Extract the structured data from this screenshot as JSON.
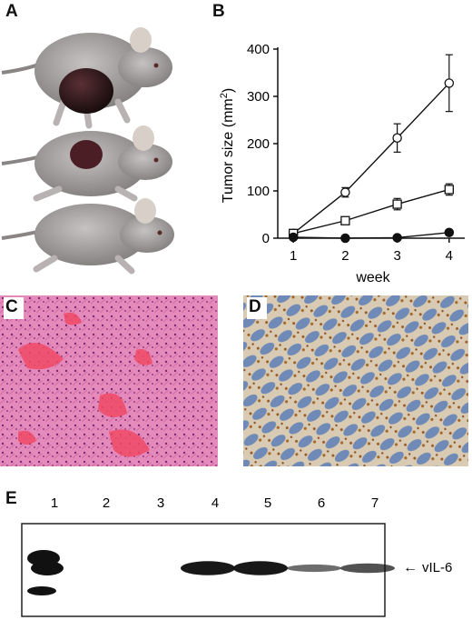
{
  "panel_labels": {
    "a": "A",
    "b": "B",
    "c": "C",
    "d": "D",
    "e": "E"
  },
  "chart_data": {
    "type": "line",
    "ylabel": "Tumor size (mm",
    "ylabel_sup": "2",
    "ylabel_close": ")",
    "xlabel": "week",
    "x": [
      1,
      2,
      3,
      4
    ],
    "xticks": [
      "1",
      "2",
      "3",
      "4"
    ],
    "ylim": [
      0,
      400
    ],
    "yticks": [
      "0",
      "100",
      "200",
      "300",
      "400"
    ],
    "grid": false,
    "series": [
      {
        "marker": "open-circle",
        "values": [
          10,
          97,
          212,
          328
        ],
        "errors": [
          4,
          10,
          30,
          60
        ]
      },
      {
        "marker": "open-square",
        "values": [
          10,
          37,
          72,
          103
        ],
        "errors": [
          3,
          5,
          12,
          12
        ]
      },
      {
        "marker": "filled-circle",
        "values": [
          2,
          0,
          1,
          12
        ],
        "errors": [
          0,
          0,
          0,
          2
        ]
      }
    ]
  },
  "blot": {
    "lane_labels": [
      "1",
      "2",
      "3",
      "4",
      "5",
      "6",
      "7"
    ],
    "band_label": "vIL-6",
    "band_intensity": [
      1.0,
      0,
      0,
      0.95,
      0.95,
      0.35,
      0.55
    ]
  },
  "colors": {
    "he_pink": "#e27bb0",
    "he_dark_pink": "#c34a8a",
    "he_red": "#f03c5a",
    "ihc_blue": "#6e88b0",
    "ihc_brown": "#a8722e",
    "mouse_skin": "#a4a0a0",
    "tumor": "#2a1416"
  }
}
